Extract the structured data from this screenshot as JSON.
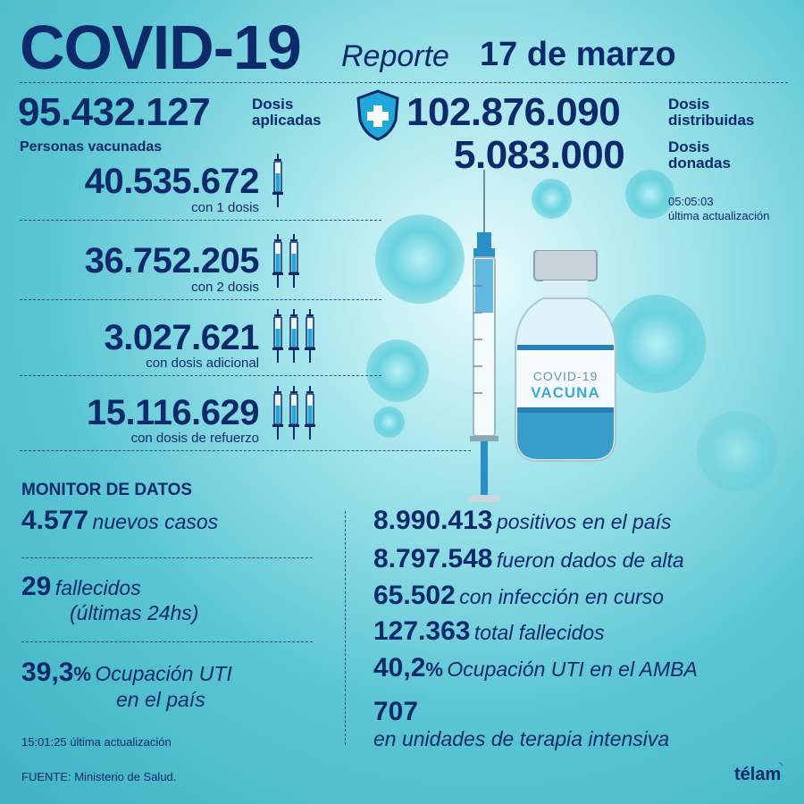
{
  "header": {
    "title": "COVID-19",
    "subtitle_prefix": "Reporte",
    "date": "17 de marzo"
  },
  "doses": {
    "applied_value": "95.432.127",
    "applied_label_1": "Dosis",
    "applied_label_2": "aplicadas",
    "distributed_value": "102.876.090",
    "distributed_label_1": "Dosis",
    "distributed_label_2": "distribuidas",
    "donated_value": "5.083.000",
    "donated_label_1": "Dosis",
    "donated_label_2": "donadas",
    "update_time": "05:05:03",
    "update_label": "última actualización"
  },
  "vaccinated": {
    "heading": "Personas vacunadas",
    "rows": [
      {
        "value": "40.535.672",
        "label": "con 1 dosis",
        "syringes": 1
      },
      {
        "value": "36.752.205",
        "label": "con 2 dosis",
        "syringes": 2
      },
      {
        "value": "3.027.621",
        "label": "con dosis adicional",
        "syringes": 3
      },
      {
        "value": "15.116.629",
        "label": "con dosis de refuerzo",
        "syringes": 3
      }
    ]
  },
  "vial": {
    "line1": "COVID-19",
    "line2": "VACUNA"
  },
  "monitor": {
    "heading": "MONITOR DE DATOS",
    "new_cases_value": "4.577",
    "new_cases_label": "nuevos casos",
    "deaths_value": "29",
    "deaths_label_1": "fallecidos",
    "deaths_label_2": "(últimas 24hs)",
    "icu_value": "39,3",
    "icu_unit": "%",
    "icu_label_1": "Ocupación UTI",
    "icu_label_2": "en el país",
    "update_time": "15:01:25",
    "update_label": "última actualización",
    "right": [
      {
        "value": "8.990.413",
        "label": "positivos en el país"
      },
      {
        "value": "8.797.548",
        "label": "fueron dados de alta"
      },
      {
        "value": "65.502",
        "label": "con infección en curso"
      },
      {
        "value": "127.363",
        "label": "total fallecidos"
      }
    ],
    "amba_value": "40,2",
    "amba_unit": "%",
    "amba_label": "Ocupación UTI en el AMBA",
    "icu_units_value": "707",
    "icu_units_label": "en unidades de terapia intensiva"
  },
  "footer": {
    "source": "FUENTE: Ministerio de Salud.",
    "logo": "télam"
  },
  "colors": {
    "navy": "#0d2a6b",
    "teal": "#3fb3c3",
    "light_teal": "#9fe3ea"
  }
}
